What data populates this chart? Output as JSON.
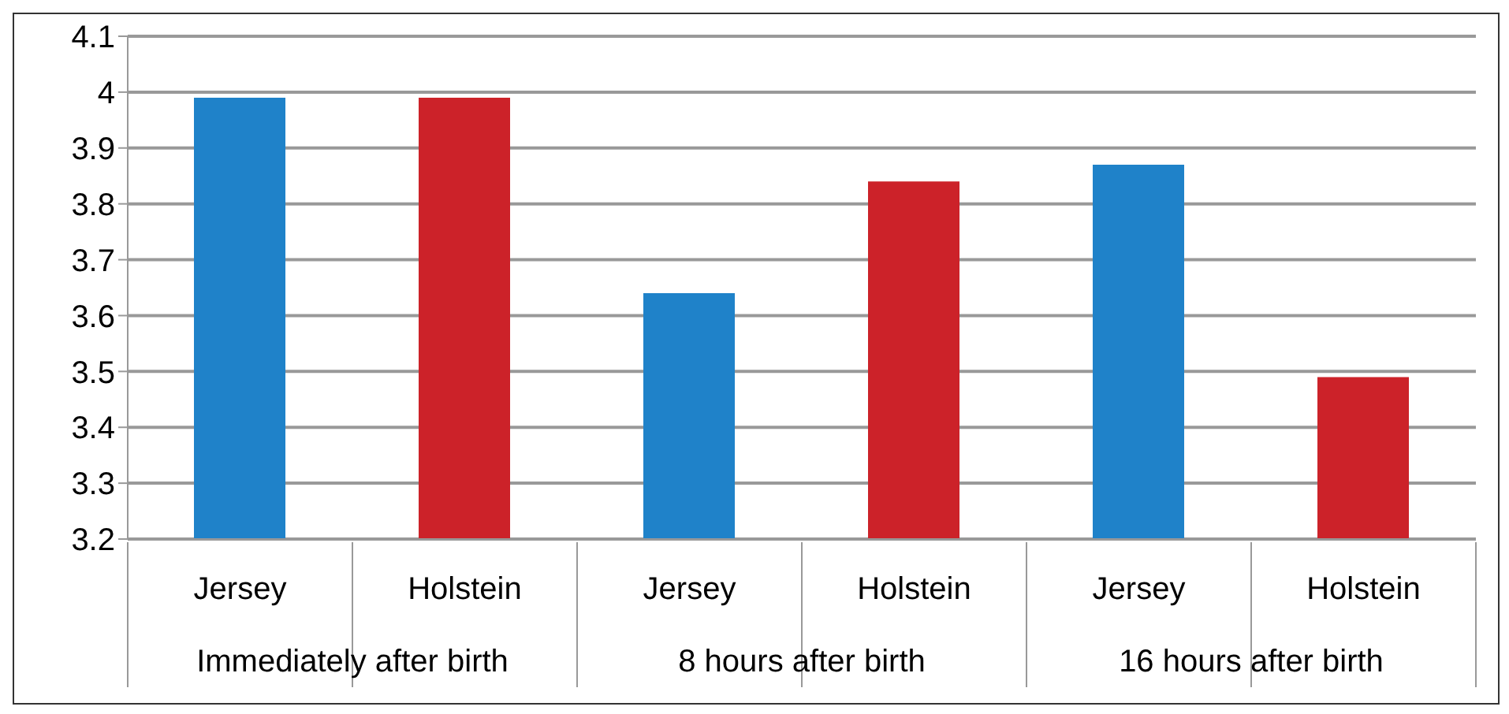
{
  "chart_data": {
    "type": "bar",
    "categories": [
      "Jersey",
      "Holstein",
      "Jersey",
      "Holstein",
      "Jersey",
      "Holstein"
    ],
    "values": [
      3.99,
      3.99,
      3.64,
      3.84,
      3.87,
      3.49
    ],
    "colors": [
      "#1f82c9",
      "#cc2229",
      "#1f82c9",
      "#cc2229",
      "#1f82c9",
      "#cc2229"
    ],
    "annotations": [
      "Immediately after birth",
      "8 hours after birth",
      "16 hours after birth"
    ],
    "ylim": [
      3.2,
      4.1
    ],
    "yticks": [
      3.2,
      3.3,
      3.4,
      3.5,
      3.6,
      3.7,
      3.8,
      3.9,
      4,
      4.1
    ],
    "grid": "y"
  }
}
